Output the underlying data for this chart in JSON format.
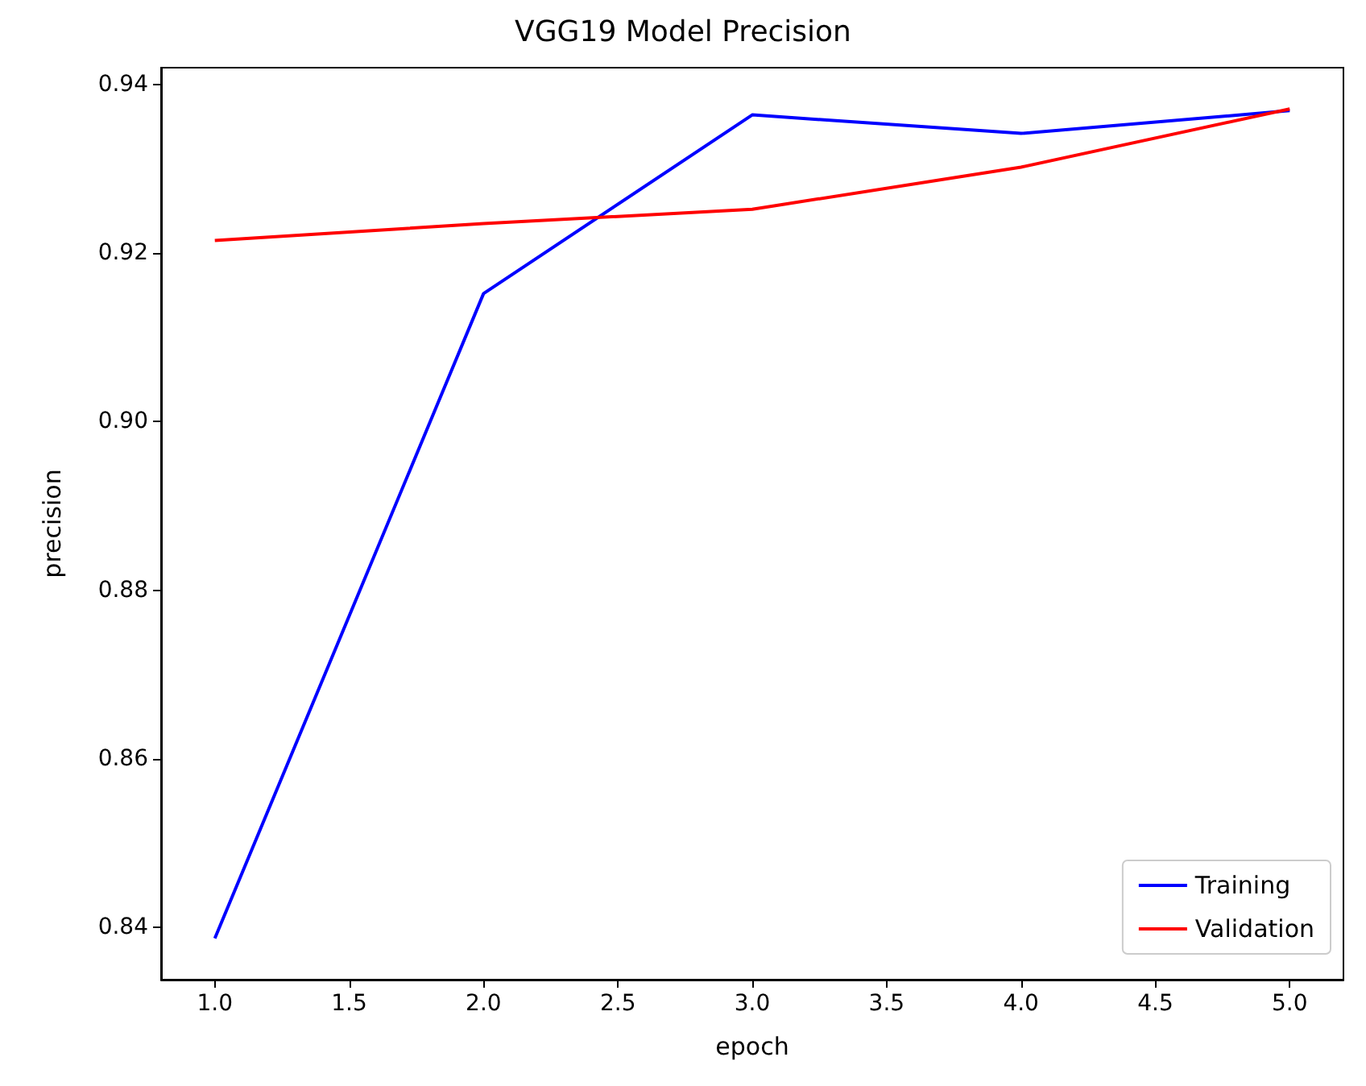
{
  "chart_data": {
    "type": "line",
    "title": "VGG19 Model Precision",
    "xlabel": "epoch",
    "ylabel": "precision",
    "x": [
      1.0,
      2.0,
      3.0,
      4.0,
      5.0
    ],
    "series": [
      {
        "name": "Training",
        "color": "#0000ff",
        "values": [
          0.8387,
          0.9152,
          0.9364,
          0.9342,
          0.9369
        ]
      },
      {
        "name": "Validation",
        "color": "#ff0000",
        "values": [
          0.9215,
          0.9235,
          0.9252,
          0.9302,
          0.9371
        ]
      }
    ],
    "xlim": [
      0.8,
      5.2
    ],
    "xticks": [
      {
        "value": 1.0,
        "label": "1.0"
      },
      {
        "value": 1.5,
        "label": "1.5"
      },
      {
        "value": 2.0,
        "label": "2.0"
      },
      {
        "value": 2.5,
        "label": "2.5"
      },
      {
        "value": 3.0,
        "label": "3.0"
      },
      {
        "value": 3.5,
        "label": "3.5"
      },
      {
        "value": 4.0,
        "label": "4.0"
      },
      {
        "value": 4.5,
        "label": "4.5"
      },
      {
        "value": 5.0,
        "label": "5.0"
      }
    ],
    "ylim": [
      0.8338,
      0.942
    ],
    "yticks": [
      {
        "value": 0.84,
        "label": "0.84"
      },
      {
        "value": 0.86,
        "label": "0.86"
      },
      {
        "value": 0.88,
        "label": "0.88"
      },
      {
        "value": 0.9,
        "label": "0.90"
      },
      {
        "value": 0.92,
        "label": "0.92"
      },
      {
        "value": 0.94,
        "label": "0.94"
      }
    ],
    "legend": "bottom right",
    "grid": false,
    "marker": "none",
    "line_style": "solid"
  }
}
